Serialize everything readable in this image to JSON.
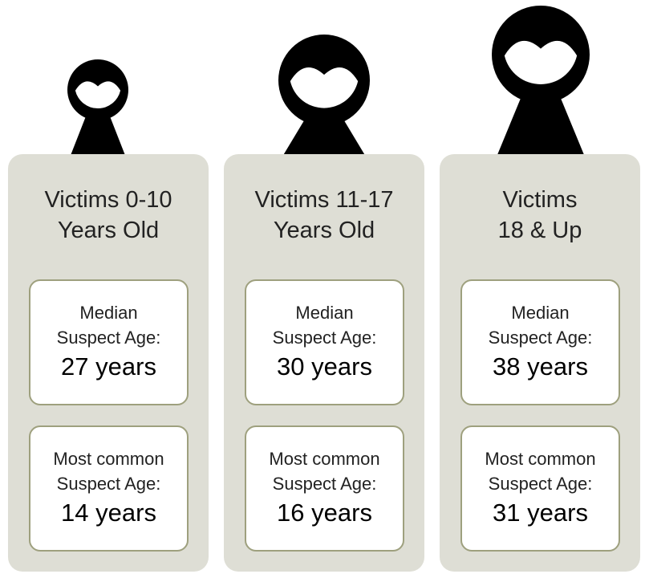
{
  "columns": [
    {
      "title": [
        "Victims 0-10",
        "Years Old"
      ],
      "stats": [
        {
          "label": [
            "Median",
            "Suspect Age:"
          ],
          "value": "27 years"
        },
        {
          "label": [
            "Most common",
            "Suspect Age:"
          ],
          "value": "14 years"
        }
      ]
    },
    {
      "title": [
        "Victims 11-17",
        "Years Old"
      ],
      "stats": [
        {
          "label": [
            "Median",
            "Suspect Age:"
          ],
          "value": "30 years"
        },
        {
          "label": [
            "Most common",
            "Suspect Age:"
          ],
          "value": "16 years"
        }
      ]
    },
    {
      "title": [
        "Victims",
        "18 & Up"
      ],
      "stats": [
        {
          "label": [
            "Median",
            "Suspect Age:"
          ],
          "value": "38 years"
        },
        {
          "label": [
            "Most common",
            "Suspect Age:"
          ],
          "value": "31 years"
        }
      ]
    }
  ]
}
